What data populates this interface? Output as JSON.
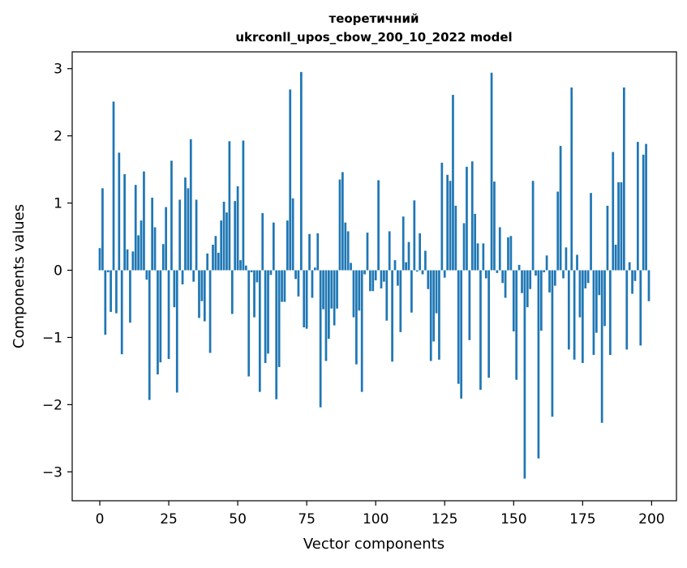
{
  "chart_data": {
    "type": "bar",
    "title_line1": "теоретичний",
    "title_line2": "ukrconll_upos_cbow_200_10_2022 model",
    "xlabel": "Vector components",
    "ylabel": "Components values",
    "xlim": [
      -10,
      209
    ],
    "ylim": [
      -3.43,
      3.25
    ],
    "xticks": [
      0,
      25,
      50,
      75,
      100,
      125,
      150,
      175,
      200
    ],
    "yticks": [
      -3,
      -2,
      -1,
      0,
      1,
      2,
      3
    ],
    "ytick_labels": [
      "−3",
      "−2",
      "−1",
      "0",
      "1",
      "2",
      "3"
    ],
    "grid": false,
    "bar_color": "#1f77b4",
    "x": [
      0,
      1,
      2,
      3,
      4,
      5,
      6,
      7,
      8,
      9,
      10,
      11,
      12,
      13,
      14,
      15,
      16,
      17,
      18,
      19,
      20,
      21,
      22,
      23,
      24,
      25,
      26,
      27,
      28,
      29,
      30,
      31,
      32,
      33,
      34,
      35,
      36,
      37,
      38,
      39,
      40,
      41,
      42,
      43,
      44,
      45,
      46,
      47,
      48,
      49,
      50,
      51,
      52,
      53,
      54,
      55,
      56,
      57,
      58,
      59,
      60,
      61,
      62,
      63,
      64,
      65,
      66,
      67,
      68,
      69,
      70,
      71,
      72,
      73,
      74,
      75,
      76,
      77,
      78,
      79,
      80,
      81,
      82,
      83,
      84,
      85,
      86,
      87,
      88,
      89,
      90,
      91,
      92,
      93,
      94,
      95,
      96,
      97,
      98,
      99,
      100,
      101,
      102,
      103,
      104,
      105,
      106,
      107,
      108,
      109,
      110,
      111,
      112,
      113,
      114,
      115,
      116,
      117,
      118,
      119,
      120,
      121,
      122,
      123,
      124,
      125,
      126,
      127,
      128,
      129,
      130,
      131,
      132,
      133,
      134,
      135,
      136,
      137,
      138,
      139,
      140,
      141,
      142,
      143,
      144,
      145,
      146,
      147,
      148,
      149,
      150,
      151,
      152,
      153,
      154,
      155,
      156,
      157,
      158,
      159,
      160,
      161,
      162,
      163,
      164,
      165,
      166,
      167,
      168,
      169,
      170,
      171,
      172,
      173,
      174,
      175,
      176,
      177,
      178,
      179,
      180,
      181,
      182,
      183,
      184,
      185,
      186,
      187,
      188,
      189,
      190,
      191,
      192,
      193,
      194,
      195,
      196,
      197,
      198,
      199
    ],
    "values": [
      0.33,
      1.22,
      -0.96,
      -0.03,
      -0.62,
      2.51,
      -0.64,
      1.75,
      -1.25,
      1.43,
      0.31,
      -0.78,
      0.28,
      1.27,
      0.52,
      0.74,
      1.47,
      -0.14,
      -1.93,
      1.08,
      0.64,
      -1.55,
      -1.37,
      0.39,
      0.94,
      -1.32,
      1.63,
      -0.55,
      -1.82,
      1.05,
      -0.21,
      1.38,
      1.22,
      1.95,
      -0.17,
      1.05,
      -0.71,
      -0.46,
      -0.76,
      0.25,
      -1.23,
      0.38,
      0.51,
      0.26,
      0.74,
      1.02,
      0.86,
      1.92,
      -0.65,
      1.03,
      1.25,
      0.15,
      1.93,
      0.07,
      -1.58,
      -0.03,
      -0.7,
      -0.18,
      -1.81,
      0.85,
      -1.38,
      -1.24,
      -0.07,
      0.71,
      -1.92,
      -1.44,
      -0.47,
      -0.47,
      0.74,
      2.69,
      1.07,
      -0.13,
      -0.39,
      2.95,
      -0.85,
      -0.87,
      0.54,
      -0.41,
      0.04,
      0.55,
      -2.04,
      -0.58,
      -1.35,
      -1.02,
      -0.57,
      -0.82,
      -0.57,
      1.35,
      1.46,
      0.71,
      0.58,
      0.11,
      -0.7,
      -1.4,
      -0.6,
      -1.81,
      -0.06,
      0.56,
      -0.31,
      -0.31,
      -0.15,
      1.34,
      -0.27,
      -0.17,
      -0.75,
      0.58,
      -1.36,
      0.15,
      -0.23,
      -0.92,
      0.8,
      0.12,
      0.42,
      -0.63,
      1.04,
      -0.02,
      0.55,
      -0.06,
      0.29,
      -0.28,
      -1.35,
      -1.06,
      -0.64,
      -1.33,
      1.6,
      -0.11,
      1.42,
      1.33,
      2.61,
      0.96,
      -1.69,
      -1.91,
      0.7,
      1.54,
      -1.04,
      1.62,
      0.84,
      0.4,
      -1.78,
      0.4,
      -0.12,
      -1.6,
      2.94,
      1.32,
      -0.04,
      0.64,
      -0.19,
      -0.41,
      0.49,
      0.51,
      -0.91,
      -1.63,
      0.08,
      -0.34,
      -3.1,
      -0.55,
      -0.28,
      1.33,
      -0.08,
      -2.8,
      -0.9,
      -0.03,
      0.22,
      -0.33,
      -2.18,
      -0.23,
      1.17,
      1.85,
      -0.12,
      0.34,
      -1.18,
      2.72,
      -1.33,
      0.23,
      -0.7,
      -1.38,
      -0.27,
      -0.19,
      1.15,
      -1.26,
      -0.93,
      -0.37,
      -2.27,
      -0.83,
      0.96,
      -1.26,
      1.76,
      0.38,
      1.31,
      1.31,
      2.72,
      -1.18,
      0.12,
      -0.35,
      -0.16,
      1.91,
      -1.12,
      1.72,
      1.88,
      -0.46
    ]
  }
}
